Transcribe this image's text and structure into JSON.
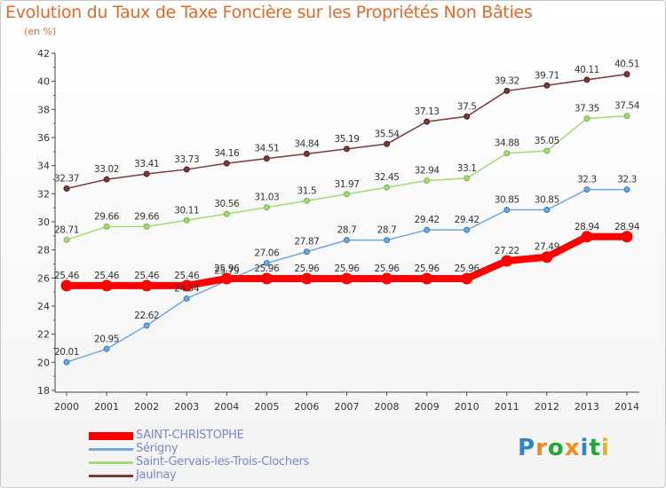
{
  "title": "Evolution du Taux de Taxe Foncière sur les Propriétés Non Bâties",
  "subtitle": "(en %)",
  "logo": "Proxiti",
  "chart_data": {
    "type": "line",
    "title": "Evolution du Taux de Taxe Foncière sur les Propriétés Non Bâties",
    "ylabel": "(en %)",
    "x": [
      "2000",
      "2001",
      "2002",
      "2003",
      "2004",
      "2005",
      "2006",
      "2007",
      "2008",
      "2009",
      "2010",
      "2011",
      "2012",
      "2013",
      "2014"
    ],
    "ylim": [
      18,
      42
    ],
    "yticks": [
      18,
      20,
      22,
      24,
      26,
      28,
      30,
      32,
      34,
      36,
      38,
      40,
      42
    ],
    "grid": false,
    "legend_position": "bottom-left",
    "series": [
      {
        "name": "SAINT-CHRISTOPHE",
        "color": "#ff0000",
        "values": [
          25.46,
          25.46,
          25.46,
          25.46,
          25.96,
          25.96,
          25.96,
          25.96,
          25.96,
          25.96,
          25.96,
          27.22,
          27.49,
          28.94,
          28.94
        ],
        "labels": [
          "25.46",
          "25.46",
          "25.46",
          "25.46",
          "25.96",
          "25.96",
          "25.96",
          "25.96",
          "25.96",
          "25.96",
          "25.96",
          "27.22",
          "27.49",
          "28.94",
          "28.94"
        ]
      },
      {
        "name": "Sérigny",
        "color": "#6fa8dc",
        "values": [
          20.01,
          20.95,
          22.62,
          24.54,
          25.79,
          27.06,
          27.87,
          28.7,
          28.7,
          29.42,
          29.42,
          30.85,
          30.85,
          32.3,
          32.3
        ],
        "labels": [
          "20.01",
          "20.95",
          "22.62",
          "24.54",
          "25.79",
          "27.06",
          "27.87",
          "28.7",
          "28.7",
          "29.42",
          "29.42",
          "30.85",
          "30.85",
          "32.3",
          "32.3"
        ]
      },
      {
        "name": "Saint-Gervais-les-Trois-Clochers",
        "color": "#a3d977",
        "values": [
          28.71,
          29.66,
          29.66,
          30.11,
          30.56,
          31.03,
          31.5,
          31.97,
          32.45,
          32.94,
          33.1,
          34.88,
          35.05,
          37.35,
          37.54
        ],
        "labels": [
          "28.71",
          "29.66",
          "29.66",
          "30.11",
          "30.56",
          "31.03",
          "31.5",
          "31.97",
          "32.45",
          "32.94",
          "33.1",
          "34.88",
          "35.05",
          "37.35",
          "37.54"
        ]
      },
      {
        "name": "Jaulnay",
        "color": "#7a3a3a",
        "values": [
          32.37,
          33.02,
          33.41,
          33.73,
          34.16,
          34.51,
          34.84,
          35.19,
          35.54,
          37.13,
          37.5,
          39.32,
          39.71,
          40.11,
          40.51
        ],
        "labels": [
          "32.37",
          "33.02",
          "33.41",
          "33.73",
          "34.16",
          "34.51",
          "34.84",
          "35.19",
          "35.54",
          "37.13",
          "37.5",
          "39.32",
          "39.71",
          "40.11",
          "40.51"
        ]
      }
    ]
  }
}
